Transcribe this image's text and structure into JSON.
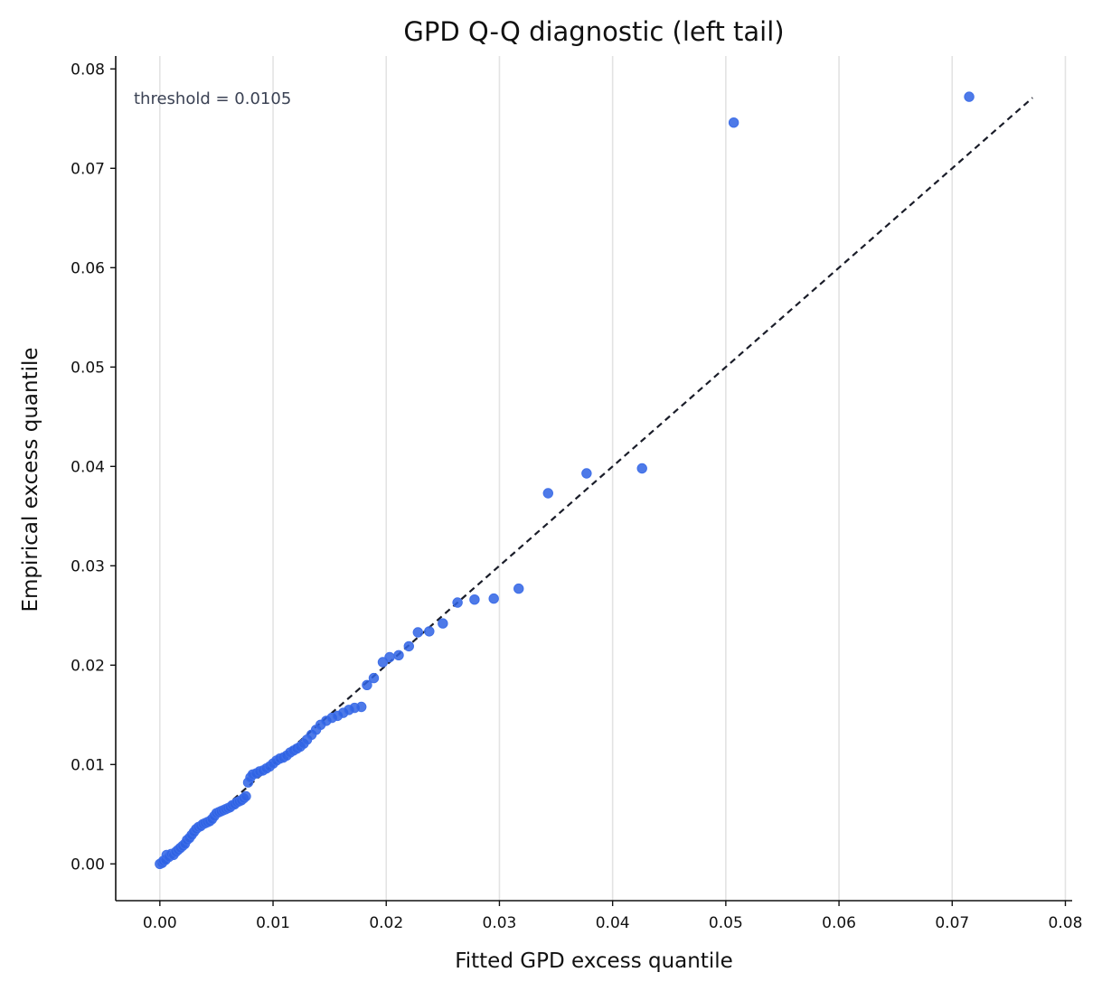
{
  "chart_data": {
    "type": "scatter",
    "title": "GPD Q-Q diagnostic (left tail)",
    "xlabel": "Fitted GPD excess quantile",
    "ylabel": "Empirical excess quantile",
    "xlim": [
      -0.0039,
      0.0806
    ],
    "ylim": [
      -0.0037,
      0.0813
    ],
    "xticks": [
      0.0,
      0.01,
      0.02,
      0.03,
      0.04,
      0.05,
      0.06,
      0.07,
      0.08
    ],
    "xtick_labels": [
      "0.00",
      "0.01",
      "0.02",
      "0.03",
      "0.04",
      "0.05",
      "0.06",
      "0.07",
      "0.08"
    ],
    "yticks": [
      0.0,
      0.01,
      0.02,
      0.03,
      0.04,
      0.05,
      0.06,
      0.07,
      0.08
    ],
    "ytick_labels": [
      "0.00",
      "0.01",
      "0.02",
      "0.03",
      "0.04",
      "0.05",
      "0.06",
      "0.07",
      "0.08"
    ],
    "grid": "vertical",
    "annotation": "threshold = 0.0105",
    "reference_line": {
      "x": [
        0.0,
        0.0771
      ],
      "y": [
        0.0,
        0.0771
      ],
      "style": "dashed"
    },
    "colors": {
      "points": "#2f63e4",
      "reference_line": "#1a1d29",
      "grid": "#e3e3e3"
    },
    "points": [
      {
        "x": 0.0,
        "y": 0.0
      },
      {
        "x": 0.0002,
        "y": 0.0001
      },
      {
        "x": 0.0003,
        "y": 0.0003
      },
      {
        "x": 0.0005,
        "y": 0.0004
      },
      {
        "x": 0.0006,
        "y": 0.0009
      },
      {
        "x": 0.0008,
        "y": 0.0007
      },
      {
        "x": 0.001,
        "y": 0.001
      },
      {
        "x": 0.0012,
        "y": 0.0009
      },
      {
        "x": 0.0014,
        "y": 0.0012
      },
      {
        "x": 0.0016,
        "y": 0.0014
      },
      {
        "x": 0.0018,
        "y": 0.0016
      },
      {
        "x": 0.002,
        "y": 0.0018
      },
      {
        "x": 0.0022,
        "y": 0.002
      },
      {
        "x": 0.0024,
        "y": 0.0024
      },
      {
        "x": 0.0026,
        "y": 0.0026
      },
      {
        "x": 0.0028,
        "y": 0.0029
      },
      {
        "x": 0.003,
        "y": 0.0032
      },
      {
        "x": 0.0032,
        "y": 0.0035
      },
      {
        "x": 0.0034,
        "y": 0.0037
      },
      {
        "x": 0.0036,
        "y": 0.0038
      },
      {
        "x": 0.0038,
        "y": 0.004
      },
      {
        "x": 0.004,
        "y": 0.0041
      },
      {
        "x": 0.0042,
        "y": 0.0042
      },
      {
        "x": 0.0044,
        "y": 0.0043
      },
      {
        "x": 0.0046,
        "y": 0.0045
      },
      {
        "x": 0.0048,
        "y": 0.0048
      },
      {
        "x": 0.005,
        "y": 0.0051
      },
      {
        "x": 0.0052,
        "y": 0.0052
      },
      {
        "x": 0.0054,
        "y": 0.0053
      },
      {
        "x": 0.0056,
        "y": 0.0054
      },
      {
        "x": 0.0058,
        "y": 0.0055
      },
      {
        "x": 0.006,
        "y": 0.0056
      },
      {
        "x": 0.0062,
        "y": 0.0057
      },
      {
        "x": 0.0064,
        "y": 0.0059
      },
      {
        "x": 0.0066,
        "y": 0.006
      },
      {
        "x": 0.0068,
        "y": 0.0062
      },
      {
        "x": 0.007,
        "y": 0.0063
      },
      {
        "x": 0.0072,
        "y": 0.0064
      },
      {
        "x": 0.0074,
        "y": 0.0066
      },
      {
        "x": 0.0076,
        "y": 0.0068
      },
      {
        "x": 0.0078,
        "y": 0.0082
      },
      {
        "x": 0.008,
        "y": 0.0087
      },
      {
        "x": 0.0082,
        "y": 0.009
      },
      {
        "x": 0.0085,
        "y": 0.0091
      },
      {
        "x": 0.0088,
        "y": 0.0093
      },
      {
        "x": 0.0091,
        "y": 0.0094
      },
      {
        "x": 0.0094,
        "y": 0.0096
      },
      {
        "x": 0.0097,
        "y": 0.0098
      },
      {
        "x": 0.01,
        "y": 0.0101
      },
      {
        "x": 0.0103,
        "y": 0.0104
      },
      {
        "x": 0.0106,
        "y": 0.0106
      },
      {
        "x": 0.0109,
        "y": 0.0107
      },
      {
        "x": 0.0112,
        "y": 0.0109
      },
      {
        "x": 0.0115,
        "y": 0.0112
      },
      {
        "x": 0.0118,
        "y": 0.0114
      },
      {
        "x": 0.0121,
        "y": 0.0116
      },
      {
        "x": 0.0124,
        "y": 0.0118
      },
      {
        "x": 0.0127,
        "y": 0.0121
      },
      {
        "x": 0.013,
        "y": 0.0125
      },
      {
        "x": 0.0134,
        "y": 0.013
      },
      {
        "x": 0.0138,
        "y": 0.0135
      },
      {
        "x": 0.0142,
        "y": 0.014
      },
      {
        "x": 0.0147,
        "y": 0.0144
      },
      {
        "x": 0.0152,
        "y": 0.0147
      },
      {
        "x": 0.0157,
        "y": 0.0149
      },
      {
        "x": 0.0162,
        "y": 0.0152
      },
      {
        "x": 0.0167,
        "y": 0.0155
      },
      {
        "x": 0.0172,
        "y": 0.0157
      },
      {
        "x": 0.0178,
        "y": 0.0158
      },
      {
        "x": 0.0183,
        "y": 0.018
      },
      {
        "x": 0.0189,
        "y": 0.0187
      },
      {
        "x": 0.0197,
        "y": 0.0203
      },
      {
        "x": 0.0203,
        "y": 0.0208
      },
      {
        "x": 0.0211,
        "y": 0.021
      },
      {
        "x": 0.022,
        "y": 0.0219
      },
      {
        "x": 0.0228,
        "y": 0.0233
      },
      {
        "x": 0.0238,
        "y": 0.0234
      },
      {
        "x": 0.025,
        "y": 0.0242
      },
      {
        "x": 0.0263,
        "y": 0.0263
      },
      {
        "x": 0.0278,
        "y": 0.0266
      },
      {
        "x": 0.0295,
        "y": 0.0267
      },
      {
        "x": 0.0317,
        "y": 0.0277
      },
      {
        "x": 0.0343,
        "y": 0.0373
      },
      {
        "x": 0.0377,
        "y": 0.0393
      },
      {
        "x": 0.0426,
        "y": 0.0398
      },
      {
        "x": 0.0507,
        "y": 0.0746
      },
      {
        "x": 0.0715,
        "y": 0.0772
      }
    ]
  }
}
